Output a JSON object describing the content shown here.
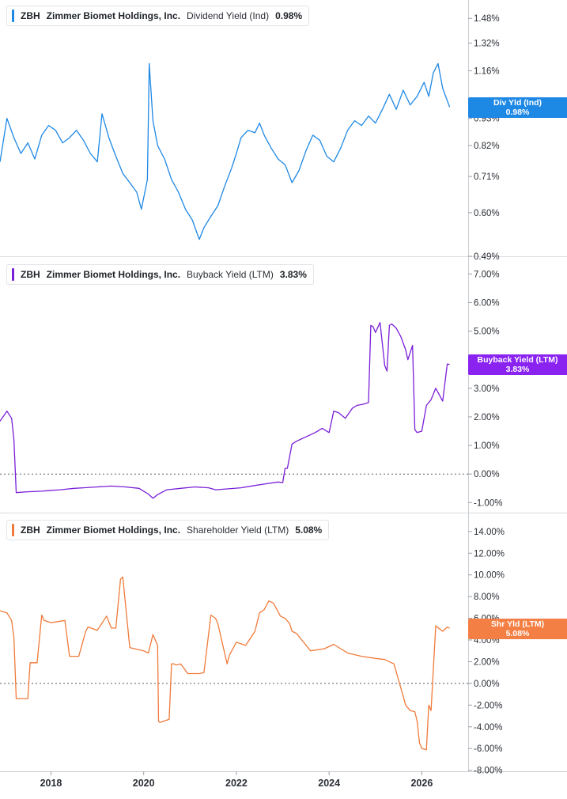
{
  "x_axis": {
    "ticks": [
      "2018",
      "2020",
      "2022",
      "2024",
      "2026"
    ],
    "range": [
      2016.9,
      2027.0
    ]
  },
  "chart_data": [
    {
      "type": "line",
      "ticker": "ZBH",
      "company": "Zimmer Biomet Holdings, Inc.",
      "metric": "Dividend Yield (Ind)",
      "current_value": "0.98%",
      "flag_label": "Div Yld (Ind)",
      "flag_value": "0.98%",
      "color": "#1e88e5",
      "y_scale": "log",
      "y_ticks": [
        "1.48%",
        "1.32%",
        "1.16%",
        "1.00%",
        "0.93%",
        "0.82%",
        "0.71%",
        "0.60%",
        "0.49%"
      ],
      "y_tick_values": [
        1.48,
        1.32,
        1.16,
        1.0,
        0.93,
        0.82,
        0.71,
        0.6,
        0.49
      ],
      "ylim": [
        0.49,
        1.6
      ],
      "zero_line": false,
      "series": [
        {
          "x": [
            2016.9,
            2017.05,
            2017.2,
            2017.35,
            2017.5,
            2017.65,
            2017.8,
            2017.95,
            2018.1,
            2018.25,
            2018.4,
            2018.55,
            2018.7,
            2018.85,
            2019.0,
            2019.1,
            2019.25,
            2019.4,
            2019.55,
            2019.7,
            2019.85,
            2019.95,
            2020.08,
            2020.12,
            2020.2,
            2020.3,
            2020.45,
            2020.6,
            2020.75,
            2020.9,
            2021.05,
            2021.2,
            2021.3,
            2021.45,
            2021.6,
            2021.75,
            2021.9,
            2022.0,
            2022.1,
            2022.25,
            2022.4,
            2022.5,
            2022.6,
            2022.75,
            2022.9,
            2023.05,
            2023.2,
            2023.35,
            2023.5,
            2023.65,
            2023.8,
            2023.95,
            2024.1,
            2024.25,
            2024.4,
            2024.55,
            2024.7,
            2024.85,
            2025.0,
            2025.15,
            2025.3,
            2025.45,
            2025.6,
            2025.75,
            2025.9,
            2026.05,
            2026.15,
            2026.25,
            2026.35,
            2026.45,
            2026.6
          ],
          "values": [
            0.76,
            0.93,
            0.85,
            0.79,
            0.83,
            0.77,
            0.86,
            0.9,
            0.88,
            0.83,
            0.85,
            0.88,
            0.84,
            0.79,
            0.76,
            0.95,
            0.85,
            0.78,
            0.72,
            0.69,
            0.66,
            0.61,
            0.7,
            1.2,
            0.92,
            0.82,
            0.77,
            0.7,
            0.66,
            0.61,
            0.58,
            0.53,
            0.56,
            0.59,
            0.62,
            0.68,
            0.74,
            0.79,
            0.85,
            0.88,
            0.87,
            0.91,
            0.86,
            0.81,
            0.77,
            0.75,
            0.69,
            0.73,
            0.8,
            0.86,
            0.84,
            0.78,
            0.76,
            0.81,
            0.88,
            0.92,
            0.9,
            0.94,
            0.91,
            0.97,
            1.04,
            0.97,
            1.06,
            0.99,
            1.03,
            1.1,
            1.03,
            1.15,
            1.2,
            1.07,
            0.98
          ]
        }
      ]
    },
    {
      "type": "line",
      "ticker": "ZBH",
      "company": "Zimmer Biomet Holdings, Inc.",
      "metric": "Buyback Yield (LTM)",
      "current_value": "3.83%",
      "flag_label": "Buyback Yield (LTM)",
      "flag_value": "3.83%",
      "color": "#7a1fd8",
      "y_scale": "linear",
      "y_ticks": [
        "7.00%",
        "6.00%",
        "5.00%",
        "4.00%",
        "3.00%",
        "2.00%",
        "1.00%",
        "0.00%",
        "-1.00%"
      ],
      "y_tick_values": [
        7,
        6,
        5,
        4,
        3,
        2,
        1,
        0,
        -1
      ],
      "ylim": [
        -1.35,
        7.45
      ],
      "zero_line": true,
      "series": [
        {
          "x": [
            2016.9,
            2017.05,
            2017.15,
            2017.2,
            2017.25,
            2017.5,
            2017.8,
            2017.95,
            2018.2,
            2018.5,
            2018.7,
            2019.0,
            2019.3,
            2019.6,
            2019.9,
            2020.0,
            2020.1,
            2020.2,
            2020.3,
            2020.5,
            2020.8,
            2021.1,
            2021.4,
            2021.55,
            2021.8,
            2022.1,
            2022.4,
            2022.6,
            2022.9,
            2023.0,
            2023.05,
            2023.1,
            2023.2,
            2023.3,
            2023.5,
            2023.7,
            2023.85,
            2024.0,
            2024.1,
            2024.2,
            2024.35,
            2024.5,
            2024.6,
            2024.75,
            2024.85,
            2024.9,
            2024.95,
            2025.0,
            2025.1,
            2025.2,
            2025.25,
            2025.3,
            2025.35,
            2025.45,
            2025.55,
            2025.65,
            2025.7,
            2025.8,
            2025.85,
            2025.9,
            2026.0,
            2026.1,
            2026.2,
            2026.3,
            2026.45,
            2026.55,
            2026.6
          ],
          "values": [
            1.85,
            2.2,
            1.95,
            1.2,
            -0.65,
            -0.62,
            -0.6,
            -0.58,
            -0.55,
            -0.5,
            -0.48,
            -0.45,
            -0.42,
            -0.45,
            -0.5,
            -0.6,
            -0.7,
            -0.85,
            -0.72,
            -0.55,
            -0.5,
            -0.45,
            -0.48,
            -0.55,
            -0.52,
            -0.48,
            -0.4,
            -0.35,
            -0.28,
            -0.3,
            0.2,
            0.2,
            1.05,
            1.15,
            1.3,
            1.45,
            1.6,
            1.45,
            2.2,
            2.15,
            1.95,
            2.3,
            2.4,
            2.45,
            2.5,
            5.2,
            5.15,
            4.95,
            5.3,
            3.8,
            3.6,
            5.2,
            5.25,
            5.1,
            4.8,
            4.35,
            4.0,
            4.5,
            1.55,
            1.45,
            1.5,
            2.4,
            2.6,
            3.0,
            2.55,
            3.85,
            3.83
          ]
        }
      ]
    },
    {
      "type": "line",
      "ticker": "ZBH",
      "company": "Zimmer Biomet Holdings, Inc.",
      "metric": "Shareholder Yield (LTM)",
      "current_value": "5.08%",
      "flag_label": "Shr Yld (LTM)",
      "flag_value": "5.08%",
      "color": "#f07a3a",
      "y_scale": "linear",
      "y_ticks": [
        "14.00%",
        "12.00%",
        "10.00%",
        "8.00%",
        "6.00%",
        "4.00%",
        "2.00%",
        "0.00%",
        "-2.00%",
        "-4.00%",
        "-6.00%",
        "-8.00%"
      ],
      "y_tick_values": [
        14,
        12,
        10,
        8,
        6,
        4,
        2,
        0,
        -2,
        -4,
        -6,
        -8
      ],
      "ylim": [
        -8.1,
        15.3
      ],
      "zero_line": true,
      "series": [
        {
          "x": [
            2016.9,
            2017.05,
            2017.15,
            2017.2,
            2017.25,
            2017.5,
            2017.55,
            2017.7,
            2017.8,
            2017.85,
            2018.0,
            2018.3,
            2018.4,
            2018.6,
            2018.75,
            2018.8,
            2019.0,
            2019.2,
            2019.3,
            2019.4,
            2019.5,
            2019.55,
            2019.7,
            2020.0,
            2020.1,
            2020.2,
            2020.3,
            2020.32,
            2020.35,
            2020.55,
            2020.6,
            2020.65,
            2020.7,
            2020.8,
            2020.95,
            2021.2,
            2021.3,
            2021.45,
            2021.55,
            2021.6,
            2021.8,
            2021.85,
            2022.0,
            2022.2,
            2022.4,
            2022.5,
            2022.6,
            2022.7,
            2022.8,
            2022.95,
            2023.05,
            2023.15,
            2023.2,
            2023.3,
            2023.6,
            2023.9,
            2024.1,
            2024.4,
            2024.7,
            2025.0,
            2025.2,
            2025.25,
            2025.4,
            2025.6,
            2025.65,
            2025.75,
            2025.85,
            2025.9,
            2025.95,
            2026.0,
            2026.1,
            2026.15,
            2026.2,
            2026.3,
            2026.45,
            2026.55,
            2026.6
          ],
          "values": [
            6.7,
            6.5,
            5.8,
            4.2,
            -1.4,
            -1.4,
            1.9,
            1.9,
            6.3,
            5.8,
            5.6,
            5.8,
            2.5,
            2.5,
            4.8,
            5.2,
            4.9,
            6.2,
            5.1,
            5.1,
            9.6,
            9.8,
            3.3,
            3.0,
            2.8,
            4.5,
            3.5,
            -3.5,
            -3.6,
            -3.3,
            1.8,
            1.8,
            1.7,
            1.8,
            0.9,
            0.9,
            1.0,
            6.3,
            6.0,
            5.5,
            1.8,
            2.6,
            3.8,
            3.5,
            4.8,
            6.5,
            6.8,
            7.6,
            7.4,
            6.2,
            6.0,
            5.5,
            4.8,
            4.6,
            3.0,
            3.2,
            3.6,
            2.8,
            2.5,
            2.3,
            2.2,
            2.1,
            1.8,
            -1.2,
            -2.0,
            -2.5,
            -2.6,
            -3.5,
            -5.5,
            -6.0,
            -6.1,
            -2.0,
            -2.5,
            5.3,
            4.8,
            5.2,
            5.08
          ]
        }
      ]
    }
  ]
}
